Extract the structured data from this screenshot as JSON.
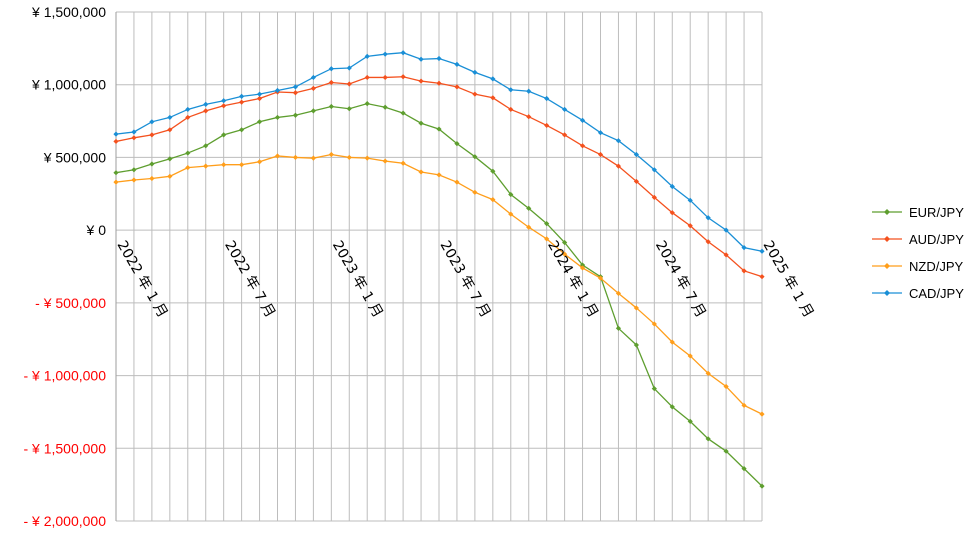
{
  "chart_data": {
    "type": "line",
    "title": "",
    "xlabel": "",
    "ylabel": "",
    "ylim": [
      -2000000,
      1500000
    ],
    "y_ticks": [
      {
        "value": 1500000,
        "label": "¥ 1,500,000"
      },
      {
        "value": 1000000,
        "label": "¥ 1,000,000"
      },
      {
        "value": 500000,
        "label": "¥ 500,000"
      },
      {
        "value": 0,
        "label": "¥ 0"
      },
      {
        "value": -500000,
        "label": "- ¥ 500,000"
      },
      {
        "value": -1000000,
        "label": "- ¥ 1,000,000"
      },
      {
        "value": -1500000,
        "label": "- ¥ 1,500,000"
      },
      {
        "value": -2000000,
        "label": "- ¥ 2,000,000"
      }
    ],
    "x_ticks": [
      {
        "index": 0,
        "label": "2022 年 1 月"
      },
      {
        "index": 6,
        "label": "2022 年 7 月"
      },
      {
        "index": 12,
        "label": "2023 年 1 月"
      },
      {
        "index": 18,
        "label": "2023 年 7 月"
      },
      {
        "index": 24,
        "label": "2024 年 1 月"
      },
      {
        "index": 30,
        "label": "2024 年 7 月"
      },
      {
        "index": 36,
        "label": "2025 年 1 月"
      }
    ],
    "x_start": "2022-01",
    "x_end": "2025-01",
    "grid": true,
    "legend": "right",
    "negative_label_color": "#ff0000",
    "positive_label_color": "#000000",
    "series": [
      {
        "name": "EUR/JPY",
        "color": "#5e9e2f",
        "values": [
          395000,
          415000,
          455000,
          490000,
          530000,
          580000,
          655000,
          690000,
          745000,
          775000,
          790000,
          820000,
          850000,
          835000,
          870000,
          845000,
          805000,
          735000,
          695000,
          595000,
          505000,
          405000,
          245000,
          150000,
          45000,
          -85000,
          -240000,
          -320000,
          -675000,
          -790000,
          -1090000,
          -1215000,
          -1315000,
          -1435000,
          -1520000,
          -1640000,
          -1760000
        ]
      },
      {
        "name": "AUD/JPY",
        "color": "#f4511e",
        "values": [
          610000,
          635000,
          655000,
          690000,
          775000,
          820000,
          855000,
          880000,
          905000,
          950000,
          945000,
          975000,
          1015000,
          1005000,
          1050000,
          1050000,
          1055000,
          1025000,
          1010000,
          985000,
          935000,
          910000,
          830000,
          780000,
          720000,
          655000,
          580000,
          520000,
          440000,
          335000,
          225000,
          120000,
          30000,
          -80000,
          -170000,
          -280000,
          -320000
        ]
      },
      {
        "name": "NZD/JPY",
        "color": "#ff9e1b",
        "values": [
          330000,
          345000,
          355000,
          370000,
          430000,
          440000,
          450000,
          450000,
          470000,
          510000,
          500000,
          495000,
          520000,
          500000,
          495000,
          475000,
          460000,
          400000,
          380000,
          330000,
          260000,
          210000,
          110000,
          20000,
          -60000,
          -165000,
          -260000,
          -330000,
          -435000,
          -535000,
          -645000,
          -770000,
          -865000,
          -985000,
          -1075000,
          -1205000,
          -1265000
        ]
      },
      {
        "name": "CAD/JPY",
        "color": "#1a8fd6",
        "values": [
          660000,
          675000,
          745000,
          775000,
          830000,
          865000,
          890000,
          920000,
          935000,
          960000,
          985000,
          1050000,
          1110000,
          1115000,
          1195000,
          1210000,
          1220000,
          1175000,
          1180000,
          1140000,
          1085000,
          1040000,
          965000,
          955000,
          905000,
          830000,
          755000,
          670000,
          615000,
          520000,
          415000,
          300000,
          205000,
          85000,
          0,
          -120000,
          -145000
        ]
      }
    ]
  }
}
